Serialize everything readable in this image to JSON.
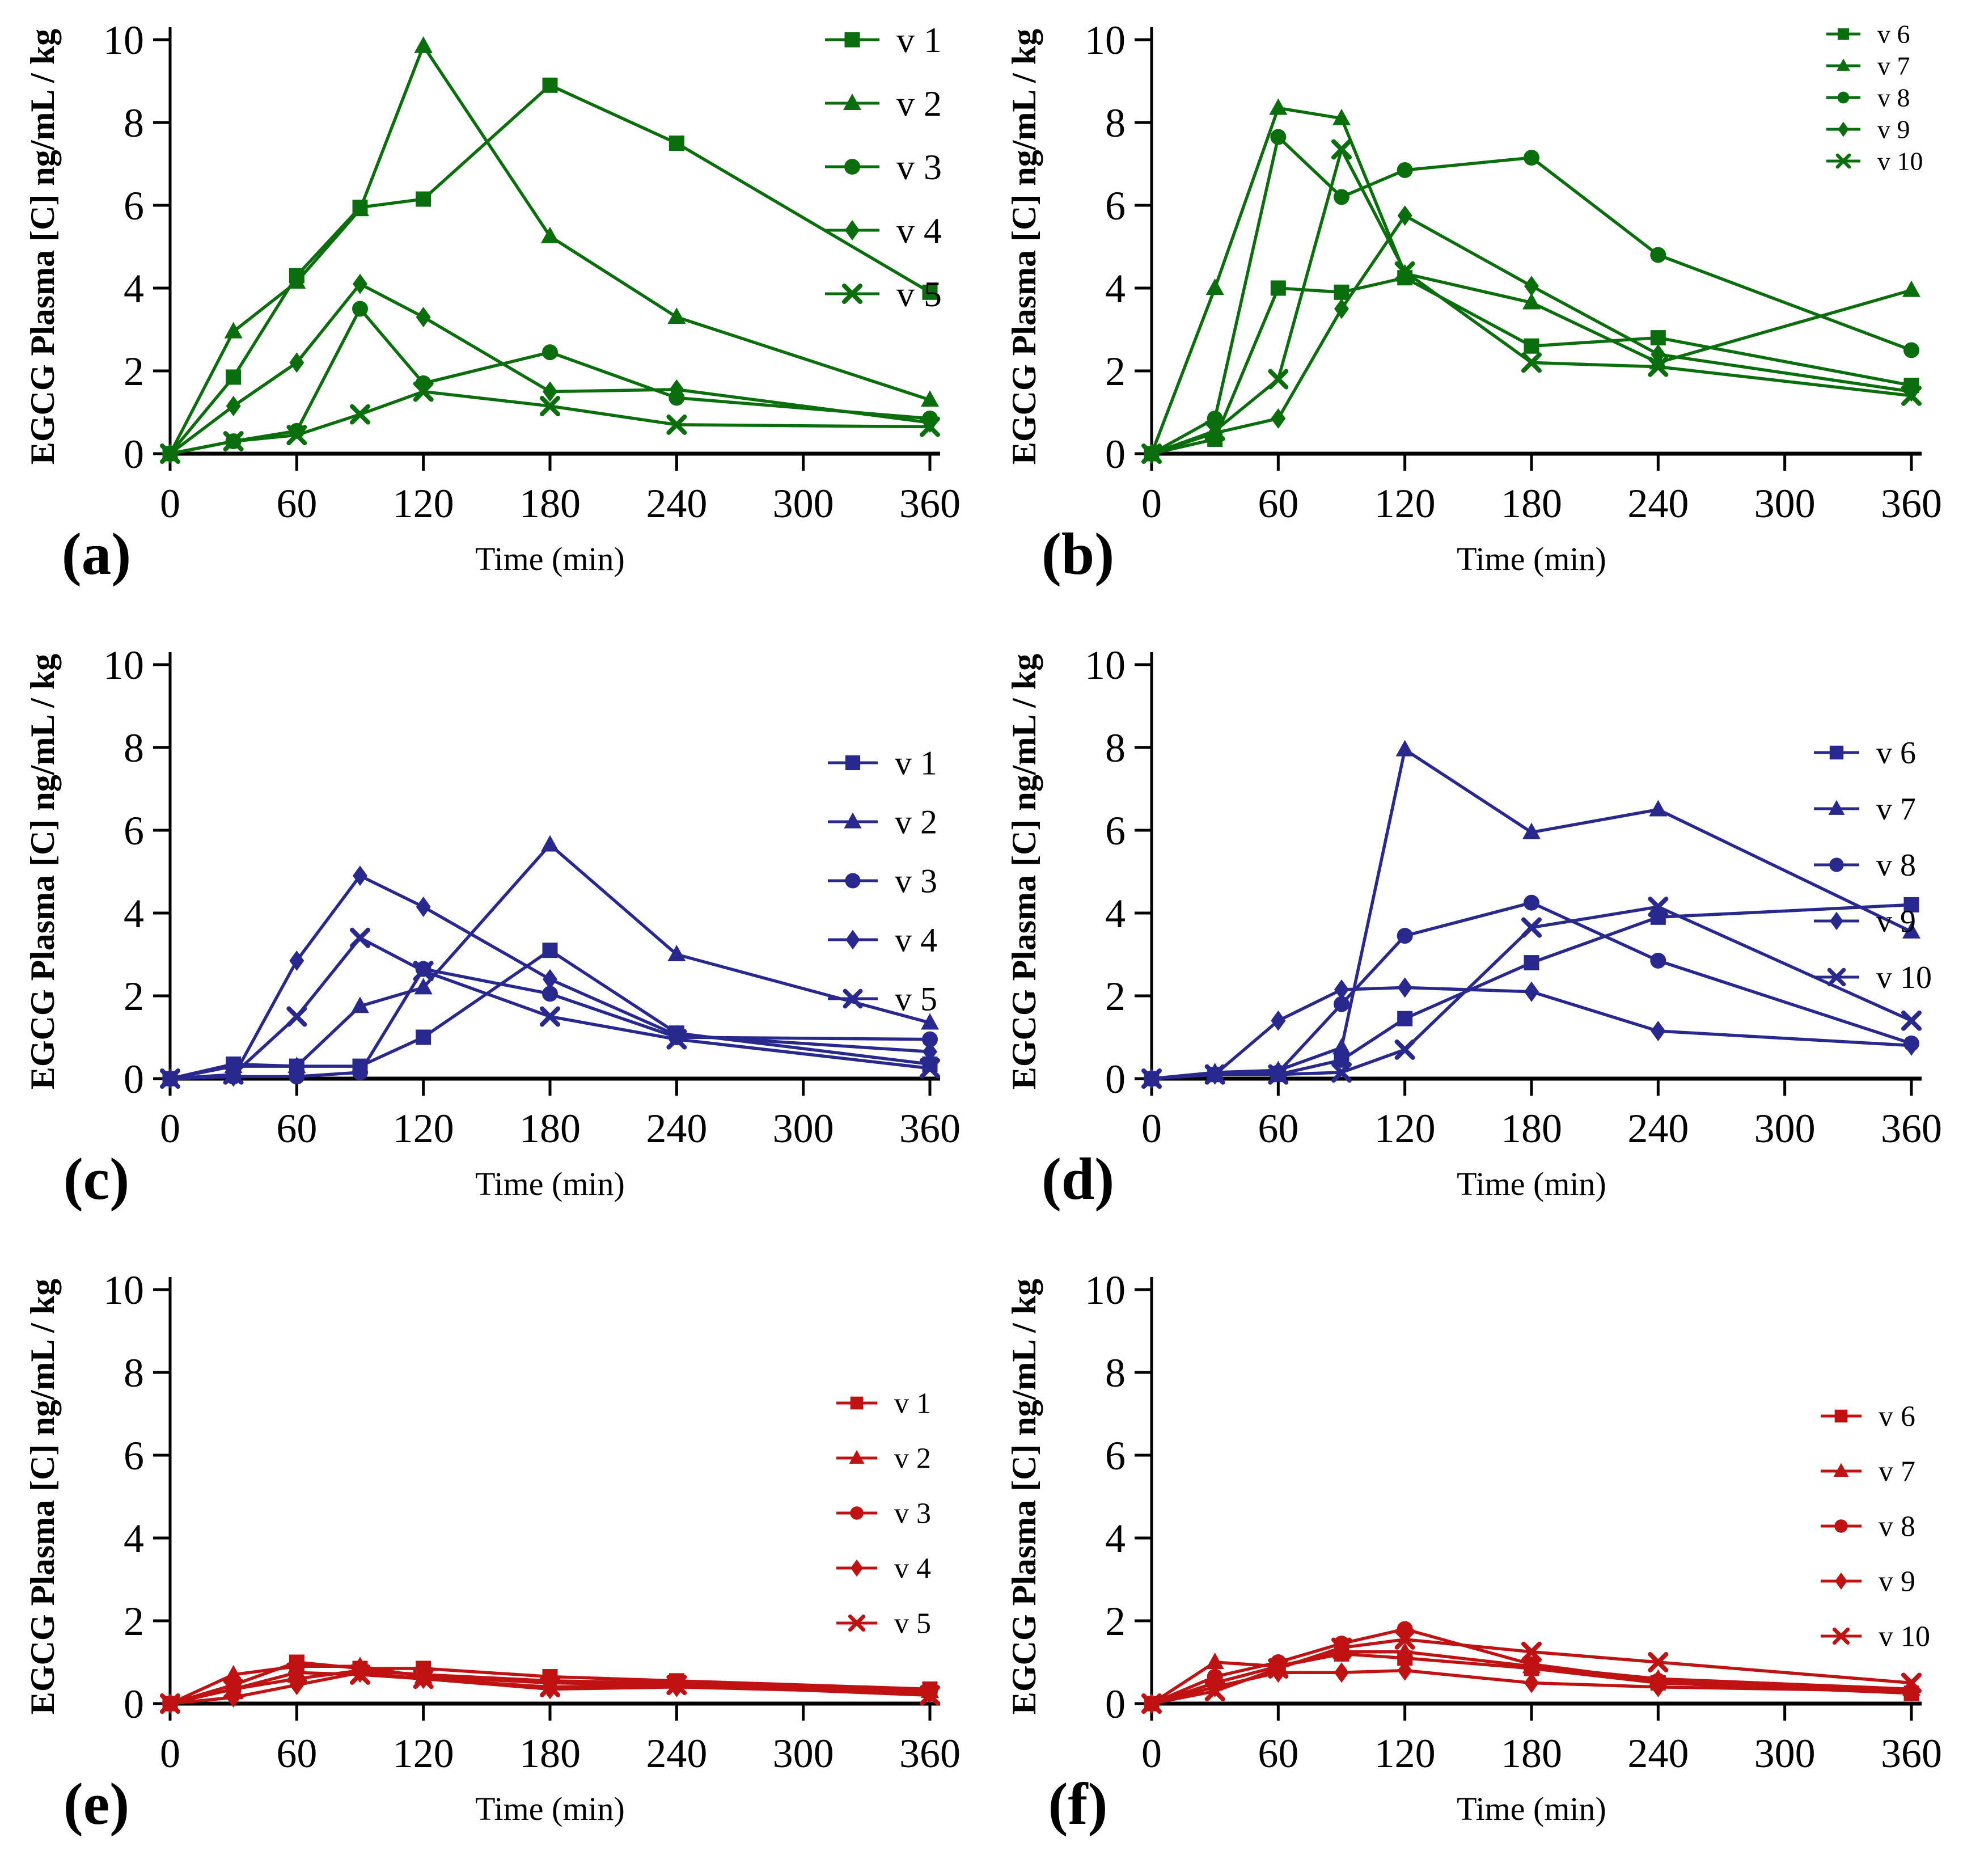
{
  "figure": {
    "ylabel": "EGCG Plasma [C] ng/mL / kg",
    "xlabel": "Time (min)",
    "colors": {
      "green": "#0b6e0c",
      "blue": "#28288f",
      "red": "#c01212"
    }
  },
  "chart_data": [
    {
      "type": "line",
      "panel_label": "(a)",
      "color": "#0b6e0c",
      "xlabel": "Time (min)",
      "ylabel": "EGCG Plasma [C] ng/mL / kg",
      "x": [
        0,
        30,
        60,
        90,
        120,
        180,
        240,
        360
      ],
      "xticks": [
        0,
        60,
        120,
        180,
        240,
        300,
        360
      ],
      "yticks": [
        0,
        2,
        4,
        6,
        8,
        10
      ],
      "xlim": [
        0,
        360
      ],
      "ylim": [
        0,
        10
      ],
      "legend_position": "top-right",
      "grid": false,
      "series": [
        {
          "name": "v 1",
          "marker": "square",
          "values": [
            0,
            1.85,
            4.3,
            5.95,
            6.15,
            8.9,
            7.5,
            3.9
          ]
        },
        {
          "name": "v 2",
          "marker": "triangle",
          "values": [
            0,
            2.95,
            4.15,
            5.9,
            9.85,
            5.25,
            3.3,
            1.3
          ]
        },
        {
          "name": "v 3",
          "marker": "circle",
          "values": [
            0,
            0.3,
            0.55,
            3.5,
            1.7,
            2.45,
            1.35,
            0.85
          ]
        },
        {
          "name": "v 4",
          "marker": "diamond",
          "values": [
            0,
            1.15,
            2.2,
            4.1,
            3.3,
            1.5,
            1.55,
            0.75
          ]
        },
        {
          "name": "v 5",
          "marker": "x",
          "values": [
            0,
            0.3,
            0.45,
            0.95,
            1.5,
            1.15,
            0.7,
            0.65
          ]
        }
      ]
    },
    {
      "type": "line",
      "panel_label": "(b)",
      "color": "#0b6e0c",
      "xlabel": "Time (min)",
      "ylabel": "EGCG Plasma [C] ng/mL / kg",
      "x": [
        0,
        30,
        60,
        90,
        120,
        180,
        240,
        360
      ],
      "xticks": [
        0,
        60,
        120,
        180,
        240,
        300,
        360
      ],
      "yticks": [
        0,
        2,
        4,
        6,
        8,
        10
      ],
      "xlim": [
        0,
        360
      ],
      "ylim": [
        0,
        10
      ],
      "legend_position": "top-right",
      "grid": false,
      "series": [
        {
          "name": "v 6",
          "marker": "square",
          "values": [
            0,
            0.35,
            4.0,
            3.9,
            4.25,
            2.6,
            2.8,
            1.65
          ]
        },
        {
          "name": "v 7",
          "marker": "triangle",
          "values": [
            0,
            4.0,
            8.35,
            8.1,
            4.35,
            3.65,
            2.2,
            3.95
          ]
        },
        {
          "name": "v 8",
          "marker": "circle",
          "values": [
            0,
            0.85,
            7.65,
            6.2,
            6.85,
            7.15,
            4.8,
            2.5
          ]
        },
        {
          "name": "v 9",
          "marker": "diamond",
          "values": [
            0,
            0.5,
            0.85,
            3.5,
            5.75,
            4.05,
            2.4,
            1.5
          ]
        },
        {
          "name": "v 10",
          "marker": "x",
          "values": [
            0,
            0.55,
            1.8,
            7.35,
            4.4,
            2.2,
            2.1,
            1.4
          ]
        }
      ]
    },
    {
      "type": "line",
      "panel_label": "(c)",
      "color": "#28288f",
      "xlabel": "Time (min)",
      "ylabel": "EGCG Plasma [C] ng/mL / kg",
      "x": [
        0,
        30,
        60,
        90,
        120,
        180,
        240,
        360
      ],
      "xticks": [
        0,
        60,
        120,
        180,
        240,
        300,
        360
      ],
      "yticks": [
        0,
        2,
        4,
        6,
        8,
        10
      ],
      "xlim": [
        0,
        360
      ],
      "ylim": [
        0,
        10
      ],
      "legend_position": "top-right",
      "grid": false,
      "series": [
        {
          "name": "v 1",
          "marker": "square",
          "values": [
            0,
            0.35,
            0.3,
            0.3,
            1.0,
            3.1,
            1.1,
            0.35
          ]
        },
        {
          "name": "v 2",
          "marker": "triangle",
          "values": [
            0,
            0.3,
            0.3,
            1.75,
            2.2,
            5.65,
            3.0,
            1.35
          ]
        },
        {
          "name": "v 3",
          "marker": "circle",
          "values": [
            0,
            0.05,
            0.05,
            0.15,
            2.65,
            2.05,
            1.0,
            0.95
          ]
        },
        {
          "name": "v 4",
          "marker": "diamond",
          "values": [
            0,
            0.05,
            2.85,
            4.9,
            4.15,
            2.4,
            1.05,
            0.65
          ]
        },
        {
          "name": "v 5",
          "marker": "x",
          "values": [
            0,
            0.1,
            1.5,
            3.4,
            2.6,
            1.5,
            0.95,
            0.25
          ]
        }
      ]
    },
    {
      "type": "line",
      "panel_label": "(d)",
      "color": "#28288f",
      "xlabel": "Time (min)",
      "ylabel": "EGCG Plasma [C] ng/mL / kg",
      "x": [
        0,
        30,
        60,
        90,
        120,
        180,
        240,
        360
      ],
      "xticks": [
        0,
        60,
        120,
        180,
        240,
        300,
        360
      ],
      "yticks": [
        0,
        2,
        4,
        6,
        8,
        10
      ],
      "xlim": [
        0,
        360
      ],
      "ylim": [
        0,
        10
      ],
      "legend_position": "top-right",
      "grid": false,
      "series": [
        {
          "name": "v 6",
          "marker": "square",
          "values": [
            0,
            0.1,
            0.1,
            0.45,
            1.45,
            2.8,
            3.9,
            4.2
          ]
        },
        {
          "name": "v 7",
          "marker": "triangle",
          "values": [
            0,
            0.15,
            0.2,
            0.75,
            7.95,
            5.95,
            6.5,
            3.55
          ]
        },
        {
          "name": "v 8",
          "marker": "circle",
          "values": [
            0,
            0.1,
            0.15,
            1.8,
            3.45,
            4.25,
            2.85,
            0.85
          ]
        },
        {
          "name": "v 9",
          "marker": "diamond",
          "values": [
            0,
            0.1,
            1.4,
            2.15,
            2.2,
            2.1,
            1.15,
            0.8
          ]
        },
        {
          "name": "v 10",
          "marker": "x",
          "values": [
            0,
            0.1,
            0.1,
            0.15,
            0.7,
            3.65,
            4.15,
            1.4
          ]
        }
      ]
    },
    {
      "type": "line",
      "panel_label": "(e)",
      "color": "#c01212",
      "xlabel": "Time (min)",
      "ylabel": "EGCG Plasma [C] ng/mL / kg",
      "x": [
        0,
        30,
        60,
        90,
        120,
        180,
        240,
        360
      ],
      "xticks": [
        0,
        60,
        120,
        180,
        240,
        300,
        360
      ],
      "yticks": [
        0,
        2,
        4,
        6,
        8,
        10
      ],
      "xlim": [
        0,
        360
      ],
      "ylim": [
        0,
        10
      ],
      "legend_position": "top-right",
      "grid": false,
      "series": [
        {
          "name": "v 1",
          "marker": "square",
          "values": [
            0,
            0.45,
            1.0,
            0.85,
            0.85,
            0.65,
            0.55,
            0.35
          ]
        },
        {
          "name": "v 2",
          "marker": "triangle",
          "values": [
            0,
            0.7,
            0.9,
            0.9,
            0.65,
            0.5,
            0.45,
            0.3
          ]
        },
        {
          "name": "v 3",
          "marker": "circle",
          "values": [
            0,
            0.35,
            0.6,
            0.8,
            0.7,
            0.55,
            0.5,
            0.3
          ]
        },
        {
          "name": "v 4",
          "marker": "diamond",
          "values": [
            0,
            0.15,
            0.45,
            0.75,
            0.6,
            0.35,
            0.4,
            0.25
          ]
        },
        {
          "name": "v 5",
          "marker": "x",
          "values": [
            0,
            0.35,
            0.75,
            0.7,
            0.6,
            0.4,
            0.45,
            0.2
          ]
        }
      ]
    },
    {
      "type": "line",
      "panel_label": "(f)",
      "color": "#c01212",
      "xlabel": "Time (min)",
      "ylabel": "EGCG Plasma [C] ng/mL / kg",
      "x": [
        0,
        30,
        60,
        90,
        120,
        180,
        240,
        360
      ],
      "xticks": [
        0,
        60,
        120,
        180,
        240,
        300,
        360
      ],
      "yticks": [
        0,
        2,
        4,
        6,
        8,
        10
      ],
      "xlim": [
        0,
        360
      ],
      "ylim": [
        0,
        10
      ],
      "legend_position": "top-right",
      "grid": false,
      "series": [
        {
          "name": "v 6",
          "marker": "square",
          "values": [
            0,
            0.5,
            0.9,
            1.2,
            1.1,
            0.85,
            0.5,
            0.25
          ]
        },
        {
          "name": "v 7",
          "marker": "triangle",
          "values": [
            0,
            1.0,
            0.9,
            1.25,
            1.25,
            0.9,
            0.6,
            0.35
          ]
        },
        {
          "name": "v 8",
          "marker": "circle",
          "values": [
            0,
            0.65,
            1.0,
            1.45,
            1.8,
            0.95,
            0.55,
            0.3
          ]
        },
        {
          "name": "v 9",
          "marker": "diamond",
          "values": [
            0,
            0.4,
            0.75,
            0.75,
            0.8,
            0.5,
            0.4,
            0.3
          ]
        },
        {
          "name": "v 10",
          "marker": "x",
          "values": [
            0,
            0.3,
            0.85,
            1.35,
            1.55,
            1.25,
            1.0,
            0.5
          ]
        }
      ]
    }
  ]
}
